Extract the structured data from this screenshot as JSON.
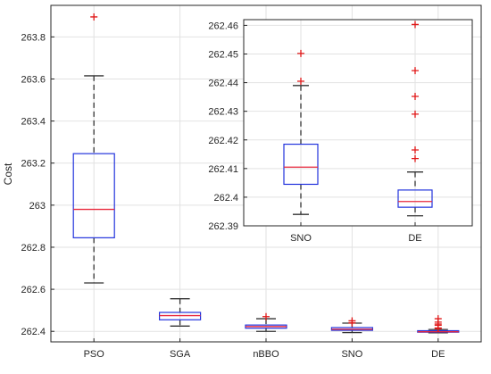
{
  "chart_data": [
    {
      "type": "boxplot",
      "ylabel": "Cost",
      "ylim": [
        262.35,
        263.95
      ],
      "yticks": [
        262.4,
        262.6,
        262.8,
        263,
        263.2,
        263.4,
        263.6,
        263.8
      ],
      "ytick_labels": [
        "262.4",
        "262.6",
        "262.8",
        "263",
        "263.2",
        "263.4",
        "263.6",
        "263.8"
      ],
      "grid": true,
      "categories": [
        "PSO",
        "SGA",
        "nBBO",
        "SNO",
        "DE"
      ],
      "boxes": [
        {
          "whisker_low": 262.63,
          "q1": 262.845,
          "median": 262.98,
          "q3": 263.245,
          "whisker_high": 263.615,
          "outliers": [
            263.895
          ]
        },
        {
          "whisker_low": 262.425,
          "q1": 262.455,
          "median": 262.475,
          "q3": 262.49,
          "whisker_high": 262.555,
          "outliers": []
        },
        {
          "whisker_low": 262.4,
          "q1": 262.415,
          "median": 262.423,
          "q3": 262.43,
          "whisker_high": 262.46,
          "outliers": [
            262.47
          ]
        },
        {
          "whisker_low": 262.394,
          "q1": 262.405,
          "median": 262.41,
          "q3": 262.418,
          "whisker_high": 262.439,
          "outliers": [
            262.44,
            262.45
          ]
        },
        {
          "whisker_low": 262.393,
          "q1": 262.396,
          "median": 262.398,
          "q3": 262.403,
          "whisker_high": 262.409,
          "outliers": [
            262.413,
            262.416,
            262.429,
            262.435,
            262.444,
            262.46
          ]
        }
      ],
      "colors": {
        "box": "#2233dd",
        "median": "#e8283c",
        "whisker": "#333333",
        "outlier": "#e01818",
        "grid": "#e2e2e2"
      }
    },
    {
      "type": "boxplot",
      "role": "inset",
      "ylim": [
        262.39,
        262.462
      ],
      "yticks": [
        262.39,
        262.4,
        262.41,
        262.42,
        262.43,
        262.44,
        262.45,
        262.46
      ],
      "ytick_labels": [
        "262.39",
        "262.4",
        "262.41",
        "262.42",
        "262.43",
        "262.44",
        "262.45",
        "262.46"
      ],
      "grid": true,
      "categories": [
        "SNO",
        "DE"
      ],
      "boxes": [
        {
          "whisker_low": 262.394,
          "q1": 262.4045,
          "median": 262.4105,
          "q3": 262.4185,
          "whisker_high": 262.439,
          "outliers": [
            262.4405,
            262.4502
          ]
        },
        {
          "whisker_low": 262.3935,
          "q1": 262.3965,
          "median": 262.3985,
          "q3": 262.4025,
          "whisker_high": 262.4088,
          "outliers": [
            262.4135,
            262.4165,
            262.429,
            262.4352,
            262.4442,
            262.4603
          ]
        }
      ]
    }
  ]
}
